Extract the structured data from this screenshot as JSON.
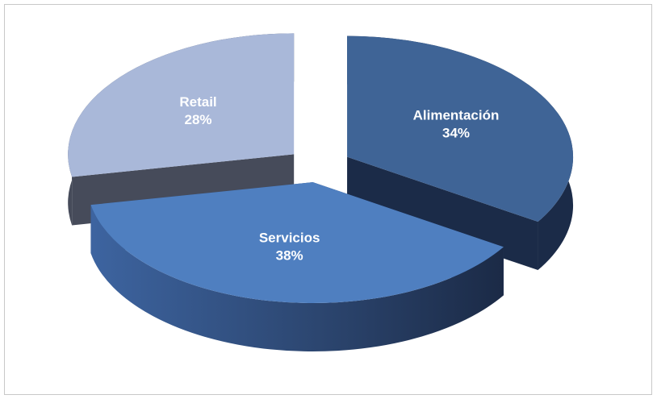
{
  "chart_data": {
    "type": "pie3d",
    "categories": [
      "Alimentación",
      "Servicios",
      "Retail"
    ],
    "values": [
      34,
      38,
      28
    ],
    "value_labels": [
      "34%",
      "38%",
      "28%"
    ],
    "colors": [
      "#3f6496",
      "#4f7fc0",
      "#a9b8d9"
    ],
    "side_colors": [
      "#1b2b48",
      "#2c4670",
      "#464b5a"
    ]
  }
}
